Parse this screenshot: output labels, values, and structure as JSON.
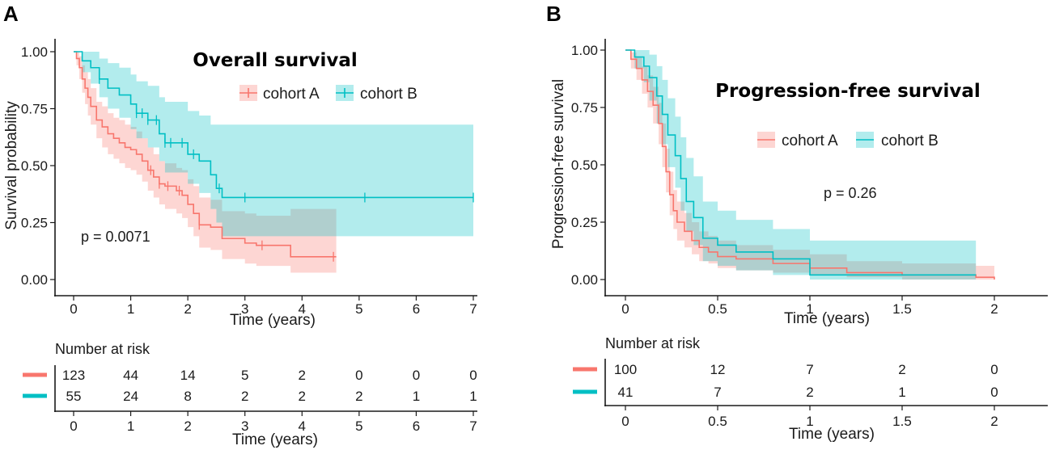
{
  "chart_data": [
    {
      "panel": "A",
      "type": "line",
      "subtype": "kaplan-meier",
      "title": "Overall survival",
      "xlabel": "Time (years)",
      "ylabel": "Survival probability",
      "xlim": [
        0,
        7
      ],
      "ylim": [
        0,
        1
      ],
      "xticks": [
        "0",
        "1",
        "2",
        "3",
        "4",
        "5",
        "6",
        "7"
      ],
      "xtick_values": [
        0,
        1,
        2,
        3,
        4,
        5,
        6,
        7
      ],
      "yticks": [
        "0.00",
        "0.25",
        "0.50",
        "0.75",
        "1.00"
      ],
      "ytick_values": [
        0,
        0.25,
        0.5,
        0.75,
        1
      ],
      "pvalue": "p = 0.0071",
      "legend": [
        "cohort A",
        "cohort B"
      ],
      "series": [
        {
          "name": "cohort A",
          "color": "#F8766D",
          "band_color": "#F8766D",
          "x": [
            0,
            0.05,
            0.1,
            0.15,
            0.2,
            0.25,
            0.3,
            0.4,
            0.5,
            0.6,
            0.7,
            0.8,
            0.9,
            1.0,
            1.1,
            1.2,
            1.3,
            1.4,
            1.5,
            1.6,
            1.7,
            1.8,
            1.9,
            2.0,
            2.1,
            2.2,
            2.4,
            2.6,
            3.0,
            3.2,
            3.8,
            4.6
          ],
          "y": [
            1.0,
            0.97,
            0.93,
            0.88,
            0.84,
            0.8,
            0.76,
            0.7,
            0.67,
            0.64,
            0.62,
            0.6,
            0.58,
            0.57,
            0.55,
            0.52,
            0.48,
            0.45,
            0.42,
            0.41,
            0.41,
            0.39,
            0.37,
            0.33,
            0.29,
            0.24,
            0.23,
            0.18,
            0.16,
            0.15,
            0.1,
            0.1
          ],
          "lower": [
            1.0,
            0.94,
            0.88,
            0.82,
            0.77,
            0.72,
            0.68,
            0.62,
            0.58,
            0.55,
            0.53,
            0.51,
            0.49,
            0.48,
            0.46,
            0.43,
            0.39,
            0.36,
            0.33,
            0.31,
            0.31,
            0.29,
            0.27,
            0.23,
            0.19,
            0.14,
            0.13,
            0.09,
            0.07,
            0.06,
            0.03,
            0.03
          ],
          "upper": [
            1.0,
            1.0,
            0.98,
            0.94,
            0.91,
            0.88,
            0.84,
            0.78,
            0.76,
            0.73,
            0.71,
            0.7,
            0.68,
            0.67,
            0.65,
            0.62,
            0.58,
            0.55,
            0.52,
            0.51,
            0.51,
            0.49,
            0.48,
            0.44,
            0.41,
            0.36,
            0.35,
            0.3,
            0.29,
            0.28,
            0.31,
            0.31
          ],
          "censor_x": [
            1.35,
            1.5,
            1.65,
            1.85,
            2.2,
            3.3,
            4.55
          ],
          "risk": [
            "123",
            "44",
            "14",
            "5",
            "2",
            "0",
            "0",
            "0"
          ]
        },
        {
          "name": "cohort B",
          "color": "#00BFC4",
          "band_color": "#00BFC4",
          "x": [
            0,
            0.15,
            0.3,
            0.45,
            0.6,
            0.8,
            1.0,
            1.1,
            1.3,
            1.5,
            1.6,
            1.8,
            2.0,
            2.2,
            2.4,
            2.5,
            2.6,
            7.0
          ],
          "y": [
            1.0,
            0.96,
            0.93,
            0.88,
            0.84,
            0.81,
            0.77,
            0.73,
            0.7,
            0.64,
            0.6,
            0.6,
            0.55,
            0.52,
            0.46,
            0.4,
            0.36,
            0.36
          ],
          "lower": [
            1.0,
            0.91,
            0.86,
            0.8,
            0.75,
            0.71,
            0.66,
            0.62,
            0.58,
            0.52,
            0.47,
            0.47,
            0.42,
            0.38,
            0.31,
            0.25,
            0.19,
            0.19
          ],
          "upper": [
            1.0,
            1.0,
            1.0,
            0.97,
            0.95,
            0.93,
            0.9,
            0.87,
            0.85,
            0.8,
            0.78,
            0.78,
            0.74,
            0.72,
            0.68,
            0.68,
            0.68,
            0.68
          ],
          "censor_x": [
            0.45,
            1.1,
            1.2,
            1.3,
            1.45,
            1.6,
            1.7,
            1.9,
            2.1,
            2.55,
            3.0,
            5.1,
            7.0
          ],
          "risk": [
            "55",
            "24",
            "8",
            "2",
            "2",
            "2",
            "1",
            "1"
          ]
        }
      ],
      "risk_table": {
        "title": "Number at risk",
        "xlabel": "Time (years)",
        "xticks": [
          "0",
          "1",
          "2",
          "3",
          "4",
          "5",
          "6",
          "7"
        ]
      }
    },
    {
      "panel": "B",
      "type": "line",
      "subtype": "kaplan-meier",
      "title": "Progression-free survival",
      "xlabel": "Time (years)",
      "ylabel": "Progression-free survival",
      "xlim": [
        0,
        2
      ],
      "ylim": [
        0,
        1
      ],
      "xticks": [
        "0",
        "0.5",
        "1",
        "1.5",
        "2"
      ],
      "xtick_values": [
        0,
        0.5,
        1,
        1.5,
        2
      ],
      "yticks": [
        "0.00",
        "0.25",
        "0.50",
        "0.75",
        "1.00"
      ],
      "ytick_values": [
        0,
        0.25,
        0.5,
        0.75,
        1
      ],
      "pvalue": "p = 0.26",
      "legend": [
        "cohort A",
        "cohort B"
      ],
      "series": [
        {
          "name": "cohort A",
          "color": "#F8766D",
          "band_color": "#F8766D",
          "x": [
            0,
            0.03,
            0.06,
            0.09,
            0.12,
            0.15,
            0.18,
            0.2,
            0.22,
            0.24,
            0.26,
            0.28,
            0.32,
            0.36,
            0.4,
            0.45,
            0.5,
            0.6,
            0.8,
            1.0,
            1.2,
            1.5,
            1.9,
            2.0
          ],
          "y": [
            1.0,
            0.96,
            0.92,
            0.87,
            0.82,
            0.76,
            0.68,
            0.58,
            0.47,
            0.37,
            0.3,
            0.25,
            0.21,
            0.17,
            0.14,
            0.12,
            0.1,
            0.09,
            0.07,
            0.05,
            0.03,
            0.02,
            0.01,
            0.0
          ],
          "lower": [
            1.0,
            0.92,
            0.87,
            0.81,
            0.75,
            0.68,
            0.59,
            0.49,
            0.38,
            0.28,
            0.22,
            0.17,
            0.14,
            0.11,
            0.08,
            0.07,
            0.05,
            0.04,
            0.03,
            0.02,
            0.01,
            0.0,
            0.0,
            0.0
          ],
          "upper": [
            1.0,
            0.99,
            0.97,
            0.93,
            0.89,
            0.84,
            0.77,
            0.68,
            0.57,
            0.47,
            0.39,
            0.34,
            0.29,
            0.25,
            0.21,
            0.19,
            0.17,
            0.15,
            0.13,
            0.11,
            0.08,
            0.07,
            0.06,
            0.06
          ],
          "censor_x": [],
          "risk": [
            "100",
            "12",
            "7",
            "2",
            "0"
          ]
        },
        {
          "name": "cohort B",
          "color": "#00BFC4",
          "band_color": "#00BFC4",
          "x": [
            0,
            0.05,
            0.1,
            0.13,
            0.17,
            0.2,
            0.23,
            0.27,
            0.3,
            0.33,
            0.37,
            0.42,
            0.5,
            0.6,
            0.8,
            1.0,
            1.9
          ],
          "y": [
            1.0,
            0.97,
            0.93,
            0.88,
            0.8,
            0.72,
            0.63,
            0.54,
            0.44,
            0.34,
            0.27,
            0.18,
            0.15,
            0.12,
            0.09,
            0.02,
            0.02
          ],
          "lower": [
            1.0,
            0.92,
            0.86,
            0.78,
            0.68,
            0.59,
            0.49,
            0.4,
            0.3,
            0.21,
            0.15,
            0.08,
            0.06,
            0.04,
            0.02,
            0.0,
            0.0
          ],
          "upper": [
            1.0,
            1.0,
            1.0,
            0.98,
            0.93,
            0.87,
            0.79,
            0.71,
            0.62,
            0.53,
            0.45,
            0.34,
            0.3,
            0.26,
            0.22,
            0.17,
            0.17
          ],
          "censor_x": [],
          "risk": [
            "41",
            "7",
            "2",
            "1",
            "0"
          ]
        }
      ],
      "risk_table": {
        "title": "Number at risk",
        "xlabel": "Time (years)",
        "xticks": [
          "0",
          "0.5",
          "1",
          "1.5",
          "2"
        ]
      }
    }
  ]
}
